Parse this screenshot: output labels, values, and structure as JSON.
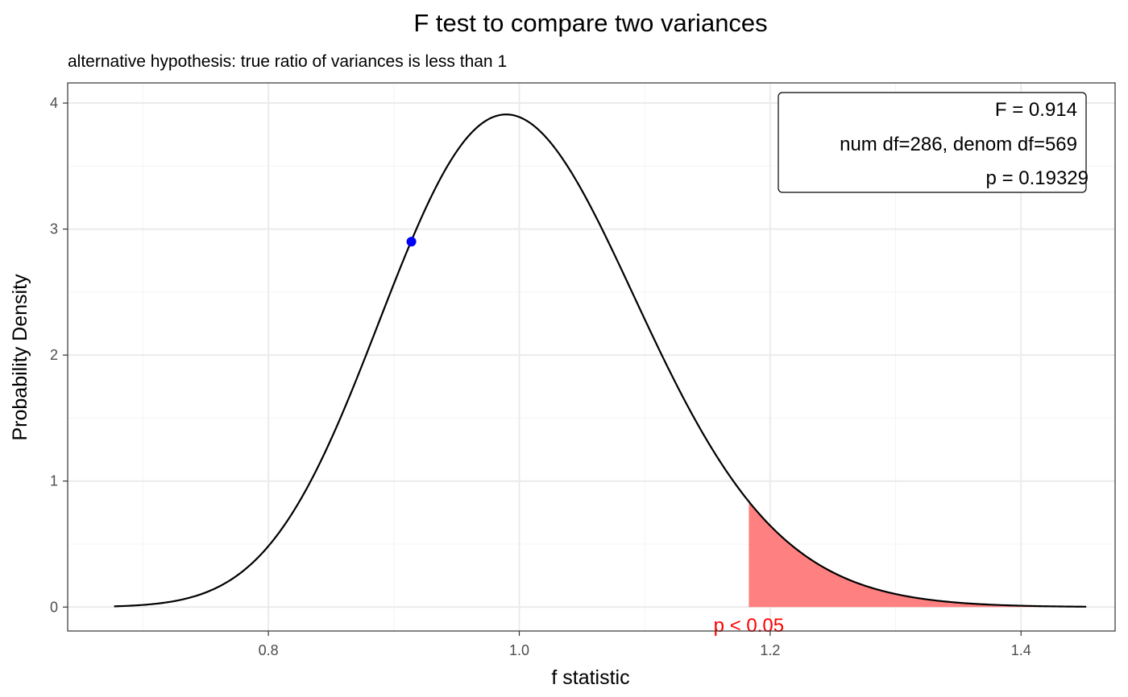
{
  "chart_data": {
    "type": "line",
    "title": "F test to compare two variances",
    "subtitle": "alternative hypothesis: true ratio of variances is less than 1",
    "xlabel": "f statistic",
    "ylabel": "Probability Density",
    "xlim": [
      0.64,
      1.475
    ],
    "ylim": [
      -0.19,
      4.16
    ],
    "x_ticks": [
      0.8,
      1.0,
      1.2,
      1.4
    ],
    "x_tick_labels": [
      "0.8",
      "1.0",
      "1.2",
      "1.4"
    ],
    "y_ticks": [
      0,
      1,
      2,
      3,
      4
    ],
    "y_tick_labels": [
      "0",
      "1",
      "2",
      "3",
      "4"
    ],
    "grid": true,
    "df": {
      "num": 286,
      "denom": 569
    },
    "x_range": [
      0.677,
      1.452
    ],
    "statistic": {
      "x": 0.914,
      "y": 2.9,
      "color": "#0000ff"
    },
    "critical_region": {
      "x_start": 1.183,
      "x_end": 1.452,
      "color": "#ff8080",
      "label": "p < 0.05",
      "label_color": "#ff0000"
    },
    "annotation": {
      "lines": [
        "F = 0.914",
        "num df=286, denom df=569",
        "p = 0.19329"
      ],
      "placement": "top-right"
    },
    "colors": {
      "curve": "#000000",
      "grid_major": "#ebebeb",
      "grid_minor": "#f4f4f4",
      "panel_border": "#333333"
    }
  }
}
